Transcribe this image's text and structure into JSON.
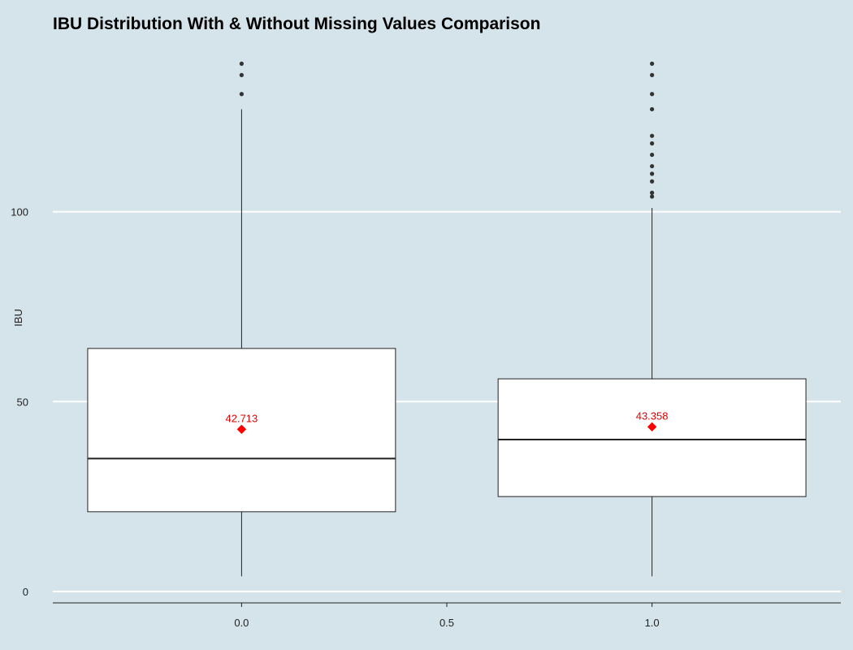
{
  "chart_data": {
    "type": "boxplot",
    "title": "IBU Distribution With & Without Missing Values Comparison",
    "xlabel": "",
    "ylabel": "IBU",
    "x_ticks": [
      "0.0",
      "0.5",
      "1.0"
    ],
    "x_tick_values": [
      0,
      0.5,
      1
    ],
    "y_ticks": [
      "0",
      "50",
      "100"
    ],
    "y_tick_values": [
      0,
      50,
      100
    ],
    "xlim": [
      -0.46,
      1.46
    ],
    "ylim": [
      -3,
      144
    ],
    "grid": "horizontal-major",
    "boxes": [
      {
        "x": 0,
        "q1": 21,
        "median": 35,
        "q3": 64,
        "whisker_low": 4,
        "whisker_high": 127,
        "outliers": [
          131,
          136,
          139
        ],
        "mean": 42.713,
        "mean_label": "42.713"
      },
      {
        "x": 1,
        "q1": 25,
        "median": 40,
        "q3": 56,
        "whisker_low": 4,
        "whisker_high": 101,
        "outliers": [
          104,
          105,
          108,
          110,
          112,
          115,
          118,
          120,
          127,
          131,
          136,
          139
        ],
        "mean": 43.358,
        "mean_label": "43.358"
      }
    ],
    "colors": {
      "background": "#d5e4eb",
      "box_fill": "#ffffff",
      "box_stroke": "#222222",
      "outlier": "#333333",
      "mean": "#ff0000",
      "gridline": "#ffffff"
    }
  }
}
